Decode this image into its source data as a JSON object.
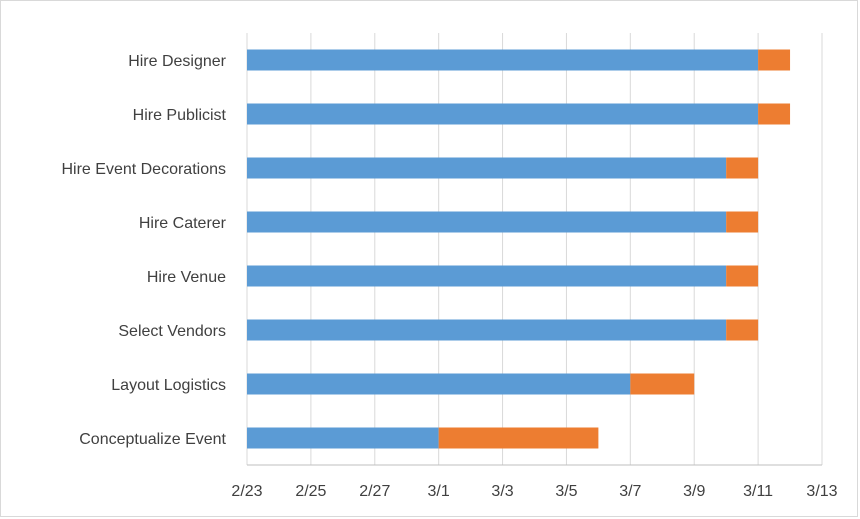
{
  "chart_data": {
    "type": "bar",
    "orientation": "horizontal",
    "stacked": true,
    "title": "",
    "xlabel": "",
    "ylabel": "",
    "categories": [
      "Hire Designer",
      "Hire Publicist",
      "Hire Event Decorations",
      "Hire Caterer",
      "Hire Venue",
      "Select Vendors",
      "Layout Logistics",
      "Conceptualize Event"
    ],
    "series": [
      {
        "color": "#5b9bd5",
        "values": [
          "3/11",
          "3/11",
          "3/10",
          "3/10",
          "3/10",
          "3/10",
          "3/7",
          "3/1"
        ]
      },
      {
        "color": "#ed7d31",
        "values": [
          1,
          1,
          1,
          1,
          1,
          1,
          2,
          5
        ]
      }
    ],
    "x_axis": {
      "type": "date",
      "min": "2/23",
      "max": "3/13",
      "ticks": [
        "2/23",
        "2/25",
        "2/27",
        "3/1",
        "3/3",
        "3/5",
        "3/7",
        "3/9",
        "3/11",
        "3/13"
      ]
    },
    "grid": true,
    "legend": "none"
  }
}
